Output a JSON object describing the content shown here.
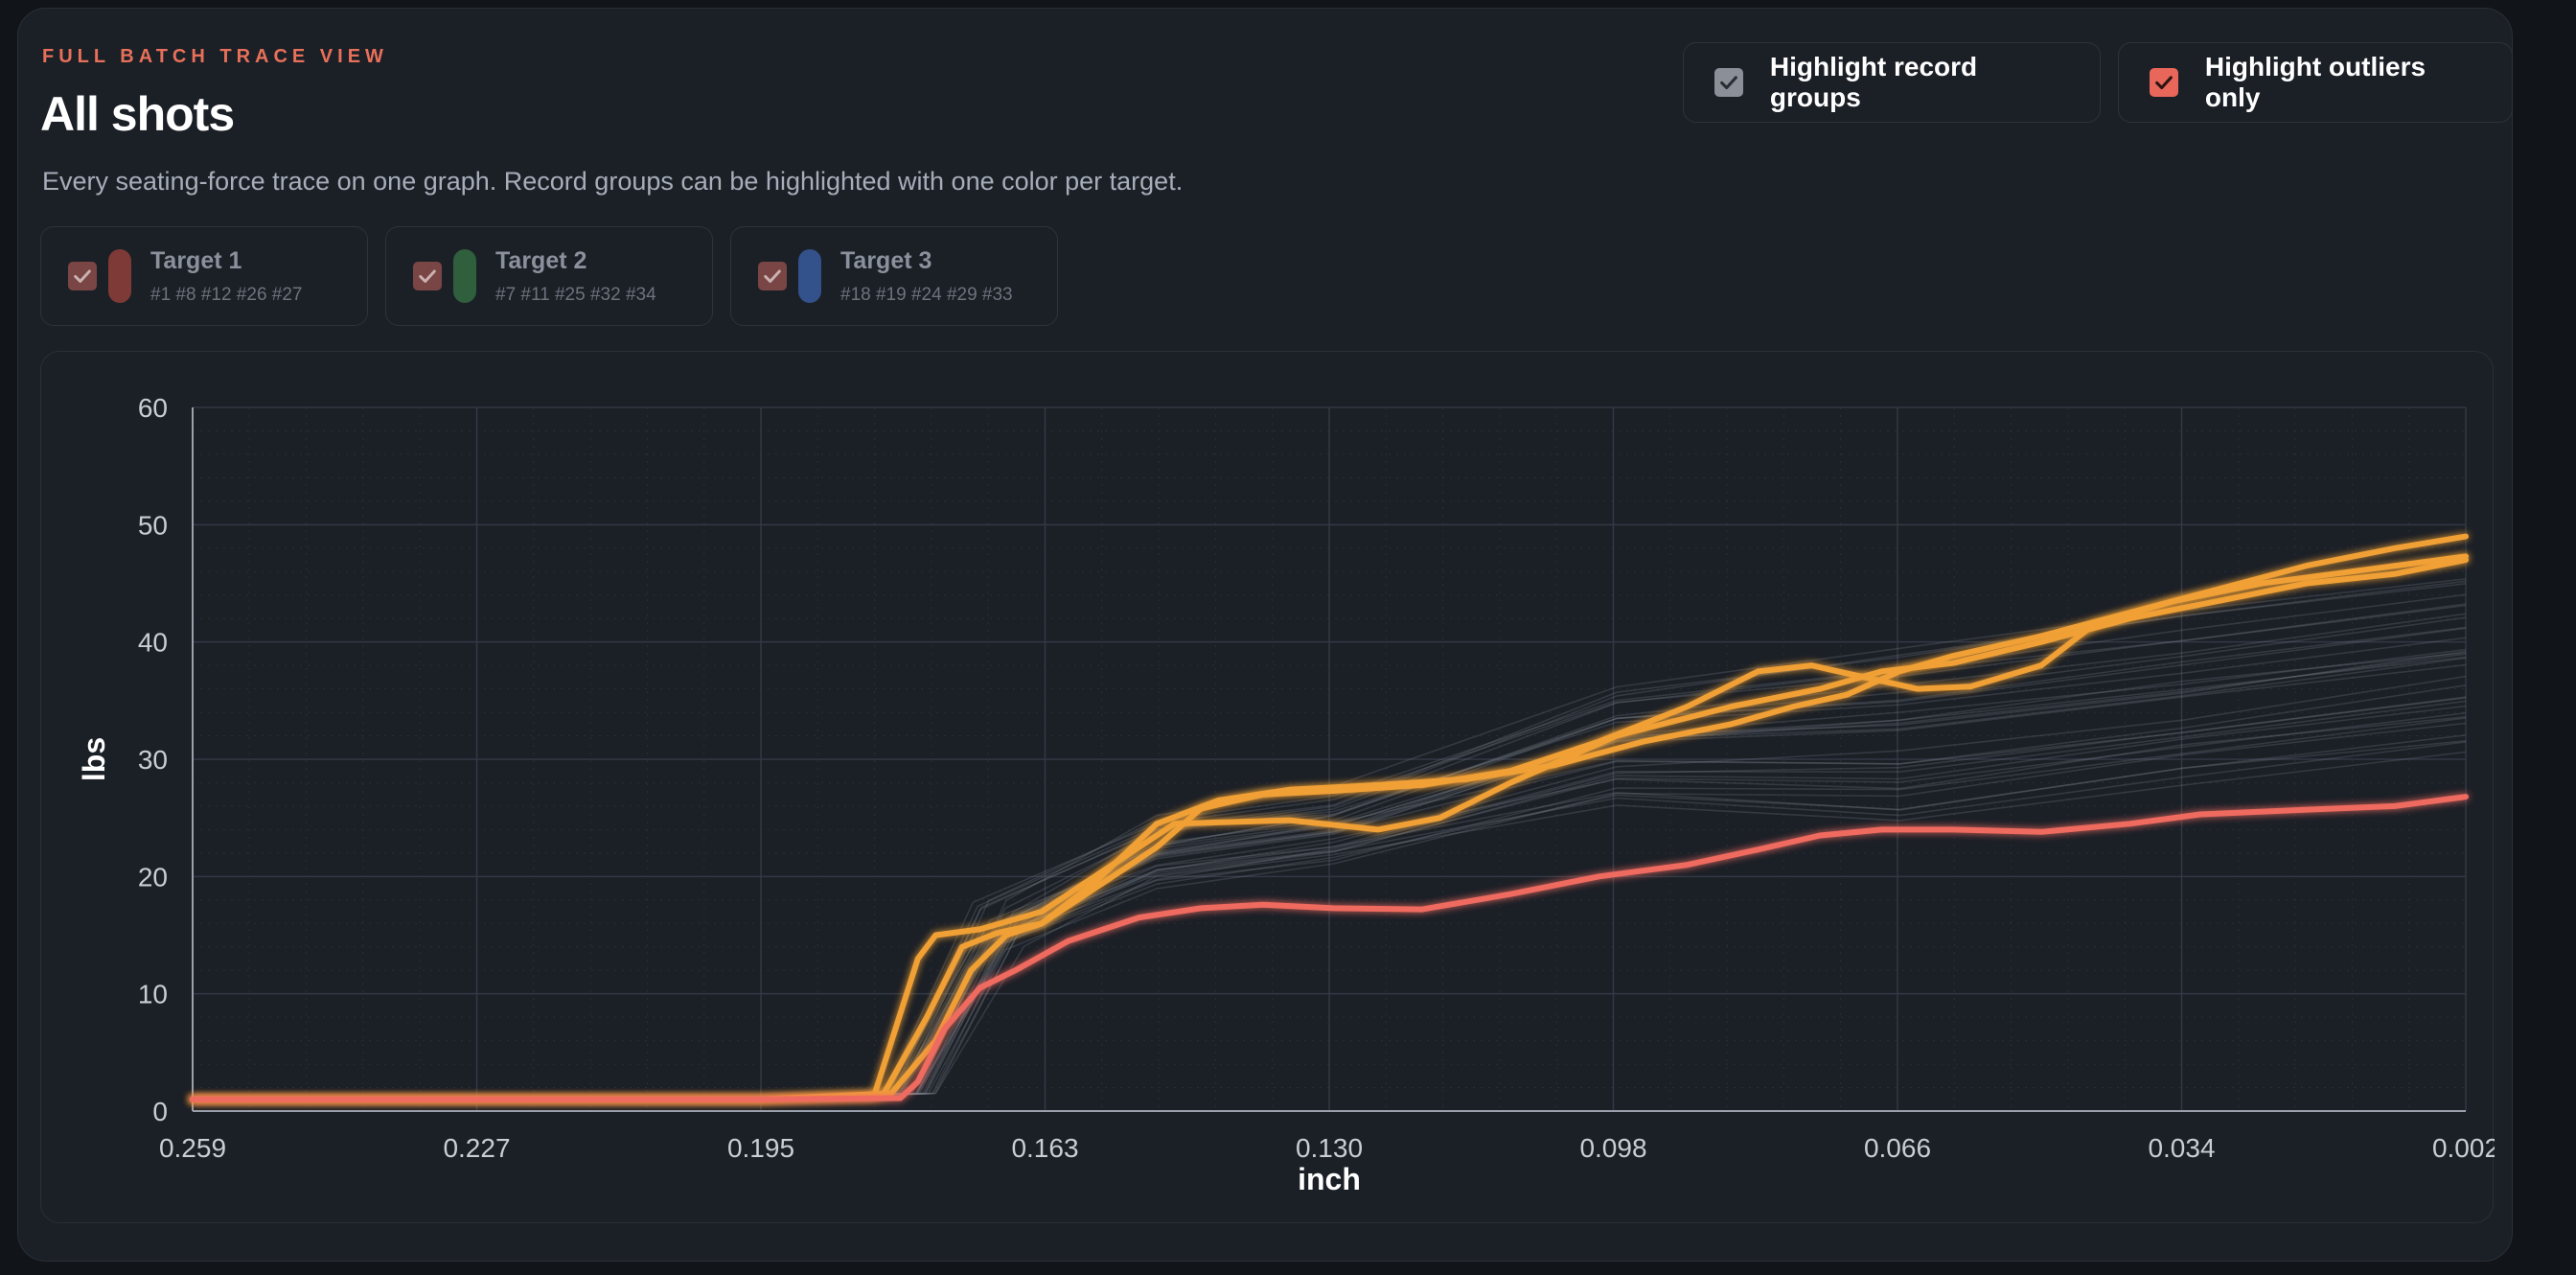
{
  "header": {
    "eyebrow": "FULL BATCH TRACE VIEW",
    "title": "All shots",
    "subtitle": "Every seating-force trace on one graph. Record groups can be highlighted with one color per target."
  },
  "toggles": [
    {
      "label": "Highlight record groups",
      "checked": true,
      "color": "#8a8f98"
    },
    {
      "label": "Highlight outliers only",
      "checked": true,
      "color": "#e8665a"
    }
  ],
  "targets": [
    {
      "name": "Target 1",
      "shots": "#1 #8 #12 #26 #27",
      "color": "#7d3a36"
    },
    {
      "name": "Target 2",
      "shots": "#7 #11 #25 #32 #34",
      "color": "#2f5f3c"
    },
    {
      "name": "Target 3",
      "shots": "#18 #19 #24 #29 #33",
      "color": "#33518a"
    }
  ],
  "chart_data": {
    "type": "line",
    "xlabel": "inch",
    "ylabel": "lbs",
    "xlim": [
      0.259,
      0.002
    ],
    "ylim": [
      0,
      60
    ],
    "x_ticks": [
      "0.259",
      "0.227",
      "0.195",
      "0.163",
      "0.130",
      "0.098",
      "0.066",
      "0.034",
      "0.002"
    ],
    "y_ticks": [
      "0",
      "10",
      "20",
      "30",
      "40",
      "50",
      "60"
    ],
    "grid": true,
    "colors": {
      "background_traces": "#767c88",
      "highlight": "#f0a035",
      "outlier": "#ef6a5e"
    },
    "background_trace_count": 32,
    "series": [
      {
        "role": "highlight",
        "color": "#f0a035",
        "points": [
          [
            0.259,
            1
          ],
          [
            0.195,
            1
          ],
          [
            0.182,
            1.2
          ],
          [
            0.177,
            13
          ],
          [
            0.175,
            15
          ],
          [
            0.17,
            15.5
          ],
          [
            0.163,
            17
          ],
          [
            0.157,
            20
          ],
          [
            0.148,
            24.5
          ],
          [
            0.135,
            24.8
          ],
          [
            0.125,
            24
          ],
          [
            0.118,
            25
          ],
          [
            0.11,
            28
          ],
          [
            0.098,
            32
          ],
          [
            0.085,
            34.5
          ],
          [
            0.075,
            36
          ],
          [
            0.068,
            37.5
          ],
          [
            0.06,
            38.2
          ],
          [
            0.05,
            40
          ],
          [
            0.04,
            42
          ],
          [
            0.03,
            43.5
          ],
          [
            0.02,
            45
          ],
          [
            0.01,
            45.8
          ],
          [
            0.002,
            47
          ]
        ]
      },
      {
        "role": "highlight",
        "color": "#f0a035",
        "points": [
          [
            0.259,
            1
          ],
          [
            0.195,
            1
          ],
          [
            0.181,
            1.3
          ],
          [
            0.176,
            8
          ],
          [
            0.172,
            14
          ],
          [
            0.168,
            15.2
          ],
          [
            0.163,
            16
          ],
          [
            0.158,
            18.5
          ],
          [
            0.15,
            22.5
          ],
          [
            0.145,
            25.8
          ],
          [
            0.138,
            27
          ],
          [
            0.13,
            27.3
          ],
          [
            0.12,
            27.8
          ],
          [
            0.11,
            29
          ],
          [
            0.1,
            31.5
          ],
          [
            0.09,
            34.5
          ],
          [
            0.082,
            37.5
          ],
          [
            0.076,
            38
          ],
          [
            0.07,
            37
          ],
          [
            0.064,
            36
          ],
          [
            0.058,
            36.2
          ],
          [
            0.05,
            38
          ],
          [
            0.044,
            41.5
          ],
          [
            0.035,
            43.5
          ],
          [
            0.025,
            45
          ],
          [
            0.015,
            46
          ],
          [
            0.002,
            47.3
          ]
        ]
      },
      {
        "role": "highlight",
        "color": "#f0a035",
        "points": [
          [
            0.259,
            1
          ],
          [
            0.195,
            1
          ],
          [
            0.18,
            1.5
          ],
          [
            0.175,
            6
          ],
          [
            0.171,
            12
          ],
          [
            0.167,
            15
          ],
          [
            0.163,
            16
          ],
          [
            0.157,
            19.5
          ],
          [
            0.15,
            24.5
          ],
          [
            0.143,
            26.5
          ],
          [
            0.135,
            27.4
          ],
          [
            0.125,
            27.8
          ],
          [
            0.115,
            28.3
          ],
          [
            0.105,
            29.5
          ],
          [
            0.095,
            31.5
          ],
          [
            0.085,
            33
          ],
          [
            0.078,
            34.5
          ],
          [
            0.072,
            35.5
          ],
          [
            0.066,
            37.5
          ],
          [
            0.06,
            38.8
          ],
          [
            0.05,
            40.5
          ],
          [
            0.04,
            42.5
          ],
          [
            0.03,
            44.5
          ],
          [
            0.02,
            46.5
          ],
          [
            0.01,
            48
          ],
          [
            0.002,
            49
          ]
        ]
      },
      {
        "role": "outlier",
        "color": "#ef6a5e",
        "points": [
          [
            0.259,
            1
          ],
          [
            0.195,
            1
          ],
          [
            0.179,
            1.1
          ],
          [
            0.177,
            2.5
          ],
          [
            0.174,
            7
          ],
          [
            0.17,
            10.5
          ],
          [
            0.166,
            12
          ],
          [
            0.16,
            14.5
          ],
          [
            0.152,
            16.5
          ],
          [
            0.145,
            17.3
          ],
          [
            0.138,
            17.6
          ],
          [
            0.13,
            17.3
          ],
          [
            0.12,
            17.2
          ],
          [
            0.11,
            18.5
          ],
          [
            0.1,
            20
          ],
          [
            0.09,
            21
          ],
          [
            0.082,
            22.3
          ],
          [
            0.075,
            23.5
          ],
          [
            0.068,
            24
          ],
          [
            0.06,
            24
          ],
          [
            0.05,
            23.8
          ],
          [
            0.04,
            24.5
          ],
          [
            0.032,
            25.3
          ],
          [
            0.02,
            25.7
          ],
          [
            0.01,
            26
          ],
          [
            0.002,
            26.8
          ]
        ]
      }
    ]
  }
}
